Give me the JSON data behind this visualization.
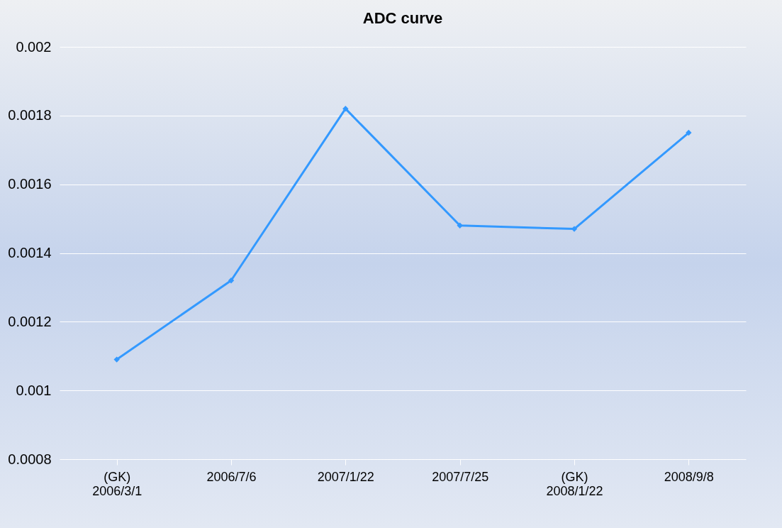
{
  "chart_data": {
    "type": "line",
    "title": "ADC curve",
    "categories": [
      "(GK)\n2006/3/1",
      "2006/7/6",
      "2007/1/22",
      "2007/7/25",
      "(GK)\n2008/1/22",
      "2008/9/8"
    ],
    "series": [
      {
        "color": "#3399ff",
        "values": [
          0.00109,
          0.00132,
          0.00182,
          0.00148,
          0.00147,
          0.00175
        ]
      }
    ],
    "ylim": [
      0.0008,
      0.002
    ],
    "yticks": [
      0.0008,
      0.001,
      0.0012,
      0.0014,
      0.0016,
      0.0018,
      0.002
    ],
    "grid": "y",
    "marker": "diamond",
    "line_style": "solid",
    "legend": false
  }
}
